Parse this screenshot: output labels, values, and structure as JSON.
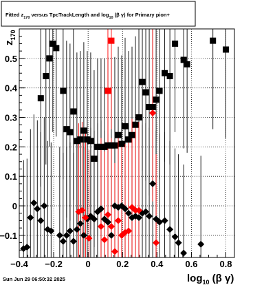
{
  "chart_data": {
    "type": "scatter",
    "title": {
      "prefix": "Fitted  z",
      "sub1": "170",
      "middle": " versus TpcTrackLength and log",
      "sub2": "10",
      "suffix": " (β  γ) for Primary pion+"
    },
    "xlabel": {
      "main": "log",
      "sub": "10",
      "rest": " (β γ)"
    },
    "ylabel": {
      "main": "z",
      "sub": "170"
    },
    "xlim": [
      -0.4,
      0.85
    ],
    "ylim": [
      -0.175,
      0.6
    ],
    "x_ticks": [
      {
        "v": -0.4,
        "label": "−0.4"
      },
      {
        "v": -0.2,
        "label": "−0.2"
      },
      {
        "v": 0,
        "label": "0"
      },
      {
        "v": 0.2,
        "label": "0.2"
      },
      {
        "v": 0.4,
        "label": "0.4"
      },
      {
        "v": 0.6,
        "label": "0.6"
      },
      {
        "v": 0.8,
        "label": "0.8"
      }
    ],
    "y_ticks": [
      {
        "v": -0.1,
        "label": "−0.1"
      },
      {
        "v": 0,
        "label": "0"
      },
      {
        "v": 0.1,
        "label": "0.1"
      },
      {
        "v": 0.2,
        "label": "0.2"
      },
      {
        "v": 0.3,
        "label": "0.3"
      },
      {
        "v": 0.4,
        "label": "0.4"
      },
      {
        "v": 0.5,
        "label": "0.5"
      }
    ],
    "grid": true,
    "series": [
      {
        "marker": "square",
        "color": "#000000",
        "points": [
          {
            "x": -0.275,
            "y": 0.365,
            "err": 0.3
          },
          {
            "x": -0.245,
            "y": 0.44,
            "err": 0.3
          },
          {
            "x": -0.225,
            "y": 0.5,
            "err": 0.3
          },
          {
            "x": -0.205,
            "y": 0.55,
            "err": 0.3
          },
          {
            "x": -0.185,
            "y": 0.535,
            "err": 0.3
          },
          {
            "x": -0.145,
            "y": 0.39,
            "err": 0.3
          },
          {
            "x": -0.125,
            "y": 0.26,
            "err": 0.3
          },
          {
            "x": -0.105,
            "y": 0.25,
            "err": 0.3
          },
          {
            "x": -0.085,
            "y": 0.32,
            "err": 0.3
          },
          {
            "x": -0.065,
            "y": 0.22,
            "err": 0.3
          },
          {
            "x": -0.045,
            "y": 0.225,
            "err": 0.3
          },
          {
            "x": -0.025,
            "y": 0.255,
            "err": 0.3
          },
          {
            "x": -0.005,
            "y": 0.225,
            "err": 0.3
          },
          {
            "x": 0.015,
            "y": 0.22,
            "err": 0.3
          },
          {
            "x": 0.035,
            "y": 0.16,
            "err": 0.3
          },
          {
            "x": 0.055,
            "y": 0.2,
            "err": 0.3
          },
          {
            "x": 0.075,
            "y": 0.2,
            "err": 0.3
          },
          {
            "x": 0.095,
            "y": 0.2,
            "err": 0.3
          },
          {
            "x": 0.115,
            "y": 0.205,
            "err": 0.3
          },
          {
            "x": 0.135,
            "y": 0.205,
            "err": 0.3
          },
          {
            "x": 0.155,
            "y": 0.205,
            "err": 0.3
          },
          {
            "x": 0.175,
            "y": 0.24,
            "err": 0.3
          },
          {
            "x": 0.195,
            "y": 0.21,
            "err": 0.3
          },
          {
            "x": 0.215,
            "y": 0.27,
            "err": 0.3
          },
          {
            "x": 0.235,
            "y": 0.225,
            "err": 0.3
          },
          {
            "x": 0.255,
            "y": 0.24,
            "err": 0.3
          },
          {
            "x": 0.275,
            "y": 0.275,
            "err": 0.3
          },
          {
            "x": 0.295,
            "y": 0.3,
            "err": 0.3
          },
          {
            "x": 0.315,
            "y": 0.42,
            "err": 0.3
          },
          {
            "x": 0.335,
            "y": 0.385,
            "err": 0.3
          },
          {
            "x": 0.355,
            "y": 0.335,
            "err": 0.3
          },
          {
            "x": 0.375,
            "y": 0.335,
            "err": 0.3
          },
          {
            "x": 0.395,
            "y": 0.36,
            "err": 0.3
          },
          {
            "x": 0.415,
            "y": 0.39,
            "err": 0.3
          },
          {
            "x": 0.445,
            "y": 0.45,
            "err": 0.3
          },
          {
            "x": 0.475,
            "y": 0.44,
            "err": 0.3
          },
          {
            "x": 0.505,
            "y": 0.55,
            "err": 0.3
          },
          {
            "x": 0.555,
            "y": 0.495,
            "err": 0.3
          },
          {
            "x": 0.575,
            "y": 0.48,
            "err": 0.3
          },
          {
            "x": 0.725,
            "y": 0.56,
            "err": 0.3
          },
          {
            "x": 0.8,
            "y": 0.53,
            "err": 0.3
          }
        ]
      },
      {
        "marker": "square",
        "color": "#ff0000",
        "points": [
          {
            "x": 0.115,
            "y": 0.39,
            "err": 0.3
          },
          {
            "x": 0.135,
            "y": 0.56,
            "err": 0.3
          }
        ]
      },
      {
        "marker": "diamond",
        "color": "#000000",
        "points": [
          {
            "x": -0.375,
            "y": -0.145,
            "err": 0.3
          },
          {
            "x": -0.355,
            "y": -0.14,
            "err": 0.3
          },
          {
            "x": -0.335,
            "y": -0.04,
            "err": 0.3
          },
          {
            "x": -0.315,
            "y": 0.01,
            "err": 0.3
          },
          {
            "x": -0.295,
            "y": -0.01,
            "err": 0.3
          },
          {
            "x": -0.275,
            "y": -0.05,
            "err": 0.3
          },
          {
            "x": -0.255,
            "y": 0.0,
            "err": 0.3
          },
          {
            "x": -0.235,
            "y": -0.08,
            "err": 0.3
          },
          {
            "x": -0.215,
            "y": -0.085,
            "err": 0.3
          },
          {
            "x": -0.165,
            "y": -0.1,
            "err": 0.3
          },
          {
            "x": -0.145,
            "y": -0.12,
            "err": 0.3
          },
          {
            "x": -0.125,
            "y": -0.1,
            "err": 0.3
          },
          {
            "x": -0.105,
            "y": -0.085,
            "err": 0.3
          },
          {
            "x": -0.085,
            "y": -0.12,
            "err": 0.3
          },
          {
            "x": -0.065,
            "y": -0.08,
            "err": 0.3
          },
          {
            "x": -0.045,
            "y": -0.06,
            "err": 0.3
          },
          {
            "x": -0.025,
            "y": -0.1,
            "err": 0.3
          },
          {
            "x": -0.005,
            "y": -0.045,
            "err": 0.3
          },
          {
            "x": 0.015,
            "y": -0.035,
            "err": 0.3
          },
          {
            "x": 0.035,
            "y": -0.045,
            "err": 0.3
          },
          {
            "x": 0.055,
            "y": -0.02,
            "err": 0.3
          },
          {
            "x": 0.075,
            "y": -0.01,
            "err": 0.3
          },
          {
            "x": 0.095,
            "y": -0.045,
            "err": 0.3
          },
          {
            "x": 0.115,
            "y": -0.055,
            "err": 0.3
          },
          {
            "x": 0.135,
            "y": -0.1,
            "err": 0.3
          },
          {
            "x": 0.155,
            "y": 0.0,
            "err": 0.3
          },
          {
            "x": 0.175,
            "y": -0.005,
            "err": 0.3
          },
          {
            "x": 0.195,
            "y": 0.0,
            "err": 0.3
          },
          {
            "x": 0.215,
            "y": -0.01,
            "err": 0.3
          },
          {
            "x": 0.235,
            "y": -0.025,
            "err": 0.3
          },
          {
            "x": 0.255,
            "y": -0.04,
            "err": 0.3
          },
          {
            "x": 0.275,
            "y": -0.035,
            "err": 0.3
          },
          {
            "x": 0.295,
            "y": -0.04,
            "err": 0.3
          },
          {
            "x": 0.315,
            "y": -0.025,
            "err": 0.3
          },
          {
            "x": 0.335,
            "y": -0.02,
            "err": 0.3
          },
          {
            "x": 0.355,
            "y": -0.035,
            "err": 0.3
          },
          {
            "x": 0.375,
            "y": 0.075,
            "err": 0.3
          },
          {
            "x": 0.395,
            "y": -0.045,
            "err": 0.3
          },
          {
            "x": 0.415,
            "y": -0.055,
            "err": 0.3
          },
          {
            "x": 0.445,
            "y": -0.05,
            "err": 0.3
          },
          {
            "x": 0.475,
            "y": -0.08,
            "err": 0.3
          },
          {
            "x": 0.505,
            "y": -0.105,
            "err": 0.3
          },
          {
            "x": 0.525,
            "y": -0.125,
            "err": 0.3
          },
          {
            "x": 0.555,
            "y": -0.16,
            "err": 0.3
          },
          {
            "x": 0.655,
            "y": -0.13,
            "err": 0.3
          }
        ]
      },
      {
        "marker": "diamond",
        "color": "#ff0000",
        "points": [
          {
            "x": -0.055,
            "y": -0.02,
            "err": 0.3
          },
          {
            "x": -0.035,
            "y": -0.015,
            "err": 0.3
          },
          {
            "x": -0.015,
            "y": -0.04,
            "err": 0.3
          },
          {
            "x": 0.005,
            "y": -0.11,
            "err": 0.3
          },
          {
            "x": 0.075,
            "y": -0.07,
            "err": 0.3
          },
          {
            "x": 0.095,
            "y": -0.115,
            "err": 0.3
          },
          {
            "x": 0.115,
            "y": -0.03,
            "err": 0.3
          },
          {
            "x": 0.135,
            "y": -0.07,
            "err": 0.3
          },
          {
            "x": 0.155,
            "y": -0.155,
            "err": 0.3
          },
          {
            "x": 0.175,
            "y": -0.05,
            "err": 0.3
          },
          {
            "x": 0.195,
            "y": -0.1,
            "err": 0.3
          },
          {
            "x": 0.215,
            "y": -0.09,
            "err": 0.3
          },
          {
            "x": 0.235,
            "y": -0.085,
            "err": 0.3
          },
          {
            "x": 0.255,
            "y": -0.005,
            "err": 0.3
          },
          {
            "x": 0.275,
            "y": -0.015,
            "err": 0.3
          },
          {
            "x": 0.295,
            "y": -0.015,
            "err": 0.3
          },
          {
            "x": 0.375,
            "y": 0.315,
            "err": 0.3
          },
          {
            "x": 0.395,
            "y": -0.125,
            "err": 0.3
          }
        ]
      }
    ]
  },
  "footer": {
    "timestamp": "Sun Jun 29 06:50:32 2025"
  }
}
